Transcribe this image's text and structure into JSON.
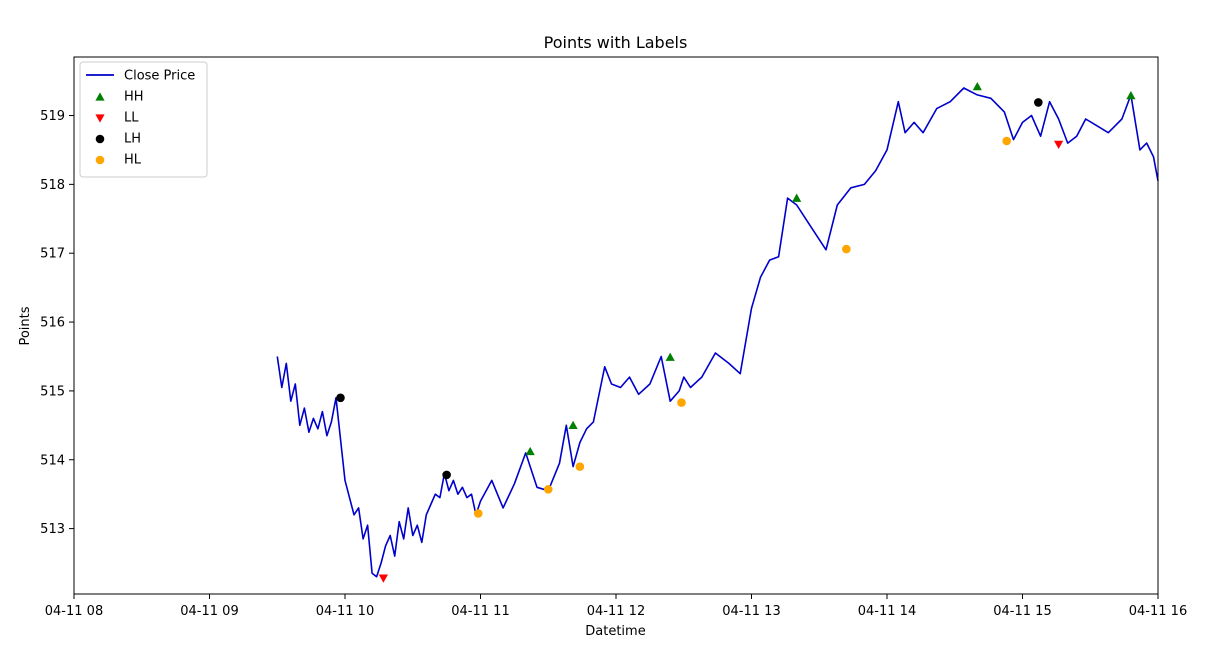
{
  "chart_data": {
    "type": "line",
    "title": "Points with Labels",
    "xlabel": "Datetime",
    "ylabel": "Points",
    "xlim": [
      "04-11 08:00",
      "04-11 16:00"
    ],
    "ylim": [
      512.05,
      519.85
    ],
    "x_ticks": [
      "04-11 08",
      "04-11 09",
      "04-11 10",
      "04-11 11",
      "04-11 12",
      "04-11 13",
      "04-11 14",
      "04-11 15",
      "04-11 16"
    ],
    "y_ticks": [
      513,
      514,
      515,
      516,
      517,
      518,
      519
    ],
    "grid": false,
    "legend_position": "top-left",
    "colors": {
      "line": "#0000cd",
      "HH": "#008000",
      "LL": "#ff0000",
      "LH": "#000000",
      "HL": "#ffa500"
    },
    "series": [
      {
        "name": "Close Price",
        "kind": "line",
        "x": [
          "04-11 09:30",
          "04-11 09:32",
          "04-11 09:34",
          "04-11 09:36",
          "04-11 09:38",
          "04-11 09:40",
          "04-11 09:42",
          "04-11 09:44",
          "04-11 09:46",
          "04-11 09:48",
          "04-11 09:50",
          "04-11 09:52",
          "04-11 09:54",
          "04-11 09:56",
          "04-11 09:58",
          "04-11 10:00",
          "04-11 10:02",
          "04-11 10:04",
          "04-11 10:06",
          "04-11 10:08",
          "04-11 10:10",
          "04-11 10:12",
          "04-11 10:14",
          "04-11 10:16",
          "04-11 10:18",
          "04-11 10:20",
          "04-11 10:22",
          "04-11 10:24",
          "04-11 10:26",
          "04-11 10:28",
          "04-11 10:30",
          "04-11 10:32",
          "04-11 10:34",
          "04-11 10:36",
          "04-11 10:38",
          "04-11 10:40",
          "04-11 10:42",
          "04-11 10:44",
          "04-11 10:46",
          "04-11 10:48",
          "04-11 10:50",
          "04-11 10:52",
          "04-11 10:54",
          "04-11 10:56",
          "04-11 10:58",
          "04-11 11:00",
          "04-11 11:05",
          "04-11 11:10",
          "04-11 11:15",
          "04-11 11:20",
          "04-11 11:22",
          "04-11 11:25",
          "04-11 11:30",
          "04-11 11:35",
          "04-11 11:38",
          "04-11 11:41",
          "04-11 11:44",
          "04-11 11:47",
          "04-11 11:50",
          "04-11 11:55",
          "04-11 11:58",
          "04-11 12:02",
          "04-11 12:06",
          "04-11 12:10",
          "04-11 12:15",
          "04-11 12:20",
          "04-11 12:24",
          "04-11 12:28",
          "04-11 12:30",
          "04-11 12:33",
          "04-11 12:38",
          "04-11 12:44",
          "04-11 12:50",
          "04-11 12:55",
          "04-11 13:00",
          "04-11 13:04",
          "04-11 13:08",
          "04-11 13:12",
          "04-11 13:16",
          "04-11 13:20",
          "04-11 13:24",
          "04-11 13:28",
          "04-11 13:33",
          "04-11 13:38",
          "04-11 13:44",
          "04-11 13:50",
          "04-11 13:55",
          "04-11 14:00",
          "04-11 14:05",
          "04-11 14:08",
          "04-11 14:12",
          "04-11 14:16",
          "04-11 14:22",
          "04-11 14:28",
          "04-11 14:34",
          "04-11 14:40",
          "04-11 14:46",
          "04-11 14:52",
          "04-11 14:56",
          "04-11 15:00",
          "04-11 15:04",
          "04-11 15:08",
          "04-11 15:12",
          "04-11 15:16",
          "04-11 15:20",
          "04-11 15:24",
          "04-11 15:28",
          "04-11 15:33",
          "04-11 15:38",
          "04-11 15:44",
          "04-11 15:48",
          "04-11 15:52",
          "04-11 15:55",
          "04-11 15:58",
          "04-11 16:00"
        ],
        "y": [
          515.5,
          515.05,
          515.4,
          514.85,
          515.1,
          514.5,
          514.75,
          514.4,
          514.6,
          514.45,
          514.7,
          514.35,
          514.55,
          514.9,
          514.3,
          513.7,
          513.45,
          513.2,
          513.3,
          512.85,
          513.05,
          512.35,
          512.3,
          512.5,
          512.75,
          512.9,
          512.6,
          513.1,
          512.85,
          513.3,
          512.9,
          513.05,
          512.8,
          513.2,
          513.35,
          513.5,
          513.45,
          513.8,
          513.55,
          513.7,
          513.5,
          513.6,
          513.45,
          513.5,
          513.2,
          513.4,
          513.7,
          513.3,
          513.65,
          514.1,
          513.9,
          513.6,
          513.55,
          513.95,
          514.5,
          513.9,
          514.25,
          514.45,
          514.55,
          515.35,
          515.1,
          515.05,
          515.2,
          514.95,
          515.1,
          515.5,
          514.85,
          515.0,
          515.2,
          515.05,
          515.2,
          515.55,
          515.4,
          515.25,
          516.2,
          516.65,
          516.9,
          516.95,
          517.8,
          517.7,
          517.5,
          517.3,
          517.05,
          517.7,
          517.95,
          518.0,
          518.2,
          518.5,
          519.2,
          518.75,
          518.9,
          518.75,
          519.1,
          519.2,
          519.4,
          519.3,
          519.25,
          519.05,
          518.65,
          518.9,
          519.0,
          518.7,
          519.2,
          518.95,
          518.6,
          518.7,
          518.95,
          518.85,
          518.75,
          518.95,
          519.3,
          518.5,
          518.6,
          518.4,
          518.05
        ]
      },
      {
        "name": "HH",
        "kind": "scatter",
        "marker": "triangle-up",
        "x": [
          "04-11 11:22",
          "04-11 11:41",
          "04-11 12:24",
          "04-11 13:20",
          "04-11 14:40",
          "04-11 15:48"
        ],
        "y": [
          514.12,
          514.5,
          515.49,
          517.8,
          519.42,
          519.29
        ]
      },
      {
        "name": "LL",
        "kind": "scatter",
        "marker": "triangle-down",
        "x": [
          "04-11 10:17",
          "04-11 15:16"
        ],
        "y": [
          512.28,
          518.58
        ]
      },
      {
        "name": "LH",
        "kind": "scatter",
        "marker": "circle",
        "x": [
          "04-11 09:58",
          "04-11 10:45",
          "04-11 15:07"
        ],
        "y": [
          514.9,
          513.78,
          519.19
        ]
      },
      {
        "name": "HL",
        "kind": "scatter",
        "marker": "circle",
        "x": [
          "04-11 10:59",
          "04-11 11:30",
          "04-11 11:44",
          "04-11 12:29",
          "04-11 13:42",
          "04-11 14:53"
        ],
        "y": [
          513.22,
          513.57,
          513.9,
          514.83,
          517.06,
          518.63
        ]
      }
    ]
  }
}
